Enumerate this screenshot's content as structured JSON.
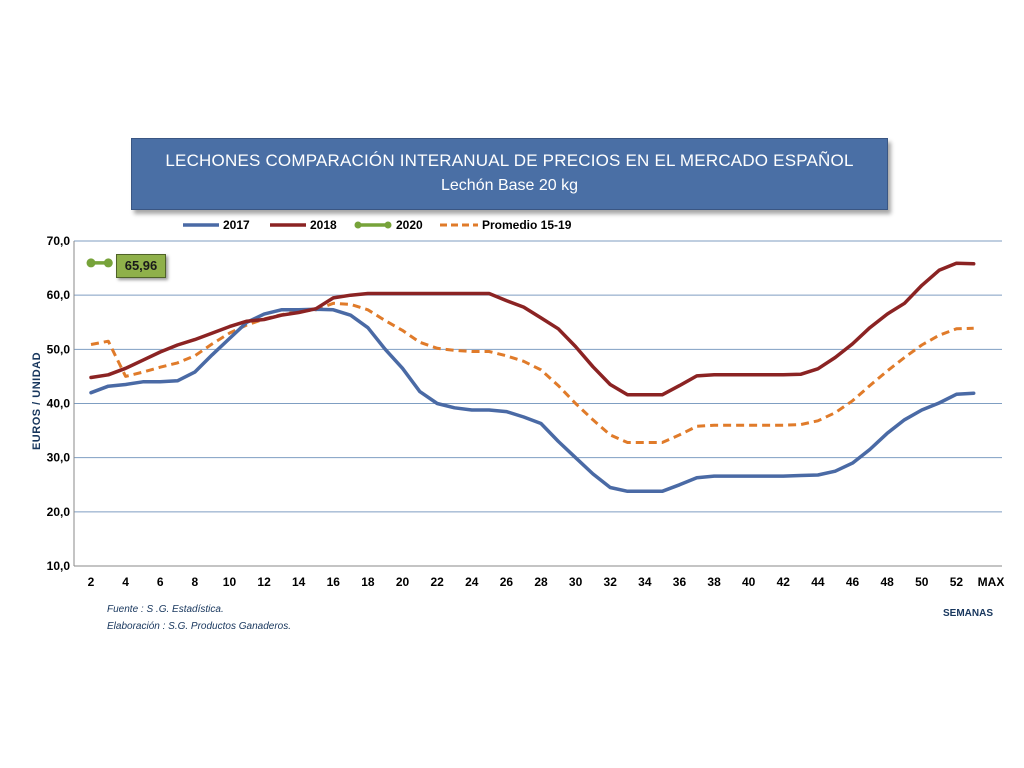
{
  "title": {
    "line1": "LECHONES COMPARACIÓN INTERANUAL DE PRECIOS EN EL MERCADO ESPAÑOL",
    "line2": "Lechón Base 20 kg"
  },
  "footer": {
    "source": "Fuente :  S .G. Estadística.",
    "elaboration": "Elaboración : S.G. Productos Ganaderos."
  },
  "callout_value": "65,96",
  "chart_data": {
    "type": "line",
    "title": "LECHONES COMPARACIÓN INTERANUAL DE PRECIOS EN EL MERCADO ESPAÑOL — Lechón Base 20 kg",
    "xlabel": "SEMANAS",
    "ylabel": "EUROS / UNIDAD",
    "ylim": [
      10,
      70
    ],
    "xlim": [
      2,
      53
    ],
    "y_ticks": [
      "10,0",
      "20,0",
      "30,0",
      "40,0",
      "50,0",
      "60,0",
      "70,0"
    ],
    "y_tick_values": [
      10,
      20,
      30,
      40,
      50,
      60,
      70
    ],
    "x_ticks": [
      "2",
      "4",
      "6",
      "8",
      "10",
      "12",
      "14",
      "16",
      "18",
      "20",
      "22",
      "24",
      "26",
      "28",
      "30",
      "32",
      "34",
      "36",
      "38",
      "40",
      "42",
      "44",
      "46",
      "48",
      "50",
      "52",
      "MAX"
    ],
    "x_tick_values": [
      2,
      4,
      6,
      8,
      10,
      12,
      14,
      16,
      18,
      20,
      22,
      24,
      26,
      28,
      30,
      32,
      34,
      36,
      38,
      40,
      42,
      44,
      46,
      48,
      50,
      52,
      54
    ],
    "grid": true,
    "legend_position": "top",
    "series": [
      {
        "name": "2017",
        "color": "#4a6aa5",
        "style": "solid",
        "x": [
          2,
          3,
          4,
          5,
          6,
          7,
          8,
          9,
          10,
          11,
          12,
          13,
          14,
          15,
          16,
          17,
          18,
          19,
          20,
          21,
          22,
          23,
          24,
          25,
          26,
          27,
          28,
          29,
          30,
          31,
          32,
          33,
          34,
          35,
          36,
          37,
          38,
          39,
          40,
          41,
          42,
          43,
          44,
          45,
          46,
          47,
          48,
          49,
          50,
          51,
          52,
          53
        ],
        "values": [
          42,
          43.2,
          43.5,
          44,
          44,
          44.2,
          45.8,
          49,
          52,
          55,
          56.5,
          57.3,
          57.3,
          57.4,
          57.3,
          56.3,
          54,
          50,
          46.5,
          42.2,
          40,
          39.2,
          38.8,
          38.8,
          38.5,
          37.5,
          36.3,
          33,
          30,
          27,
          24.5,
          23.8,
          23.8,
          23.8,
          25,
          26.3,
          26.6,
          26.6,
          26.6,
          26.6,
          26.6,
          26.7,
          26.8,
          27.5,
          29,
          31.5,
          34.5,
          37,
          38.8,
          40.1,
          41.7,
          41.9
        ]
      },
      {
        "name": "2018",
        "color": "#8b2323",
        "style": "solid",
        "x": [
          2,
          3,
          4,
          5,
          6,
          7,
          8,
          9,
          10,
          11,
          12,
          13,
          14,
          15,
          16,
          17,
          18,
          19,
          20,
          21,
          22,
          23,
          24,
          25,
          26,
          27,
          28,
          29,
          30,
          31,
          32,
          33,
          34,
          35,
          36,
          37,
          38,
          39,
          40,
          41,
          42,
          43,
          44,
          45,
          46,
          47,
          48,
          49,
          50,
          51,
          52,
          53
        ],
        "values": [
          44.8,
          45.3,
          46.5,
          48,
          49.5,
          50.8,
          51.8,
          53,
          54.2,
          55.2,
          55.5,
          56.3,
          56.8,
          57.5,
          59.5,
          60,
          60.3,
          60.3,
          60.3,
          60.3,
          60.3,
          60.3,
          60.3,
          60.3,
          59,
          57.8,
          55.8,
          53.8,
          50.5,
          46.8,
          43.5,
          41.6,
          41.6,
          41.6,
          43.3,
          45.1,
          45.3,
          45.3,
          45.3,
          45.3,
          45.3,
          45.4,
          46.4,
          48.5,
          51,
          54,
          56.5,
          58.5,
          61.8,
          64.6,
          65.9,
          65.8
        ]
      },
      {
        "name": "2020",
        "color": "#77a33a",
        "style": "solid-marker",
        "x": [
          2,
          3
        ],
        "values": [
          65.96,
          65.96
        ]
      },
      {
        "name": "Promedio 15-19",
        "color": "#e07b2a",
        "style": "dashed",
        "x": [
          2,
          3,
          4,
          5,
          6,
          7,
          8,
          9,
          10,
          11,
          12,
          13,
          14,
          15,
          16,
          17,
          18,
          19,
          20,
          21,
          22,
          23,
          24,
          25,
          26,
          27,
          28,
          29,
          30,
          31,
          32,
          33,
          34,
          35,
          36,
          37,
          38,
          39,
          40,
          41,
          42,
          43,
          44,
          45,
          46,
          47,
          48,
          49,
          50,
          51,
          52,
          53
        ],
        "values": [
          50.9,
          51.5,
          45,
          45.8,
          46.7,
          47.5,
          48.8,
          51,
          53,
          54.5,
          55.6,
          56.4,
          57,
          57.3,
          58.5,
          58.3,
          57.3,
          55.3,
          53.5,
          51.3,
          50.2,
          49.8,
          49.6,
          49.6,
          48.8,
          47.8,
          46.2,
          43.3,
          40,
          37,
          34.2,
          32.8,
          32.8,
          32.8,
          34.2,
          35.8,
          36,
          36,
          36,
          36,
          36,
          36.1,
          36.8,
          38.3,
          40.5,
          43.3,
          46,
          48.5,
          50.8,
          52.6,
          53.8,
          53.9
        ]
      }
    ]
  }
}
